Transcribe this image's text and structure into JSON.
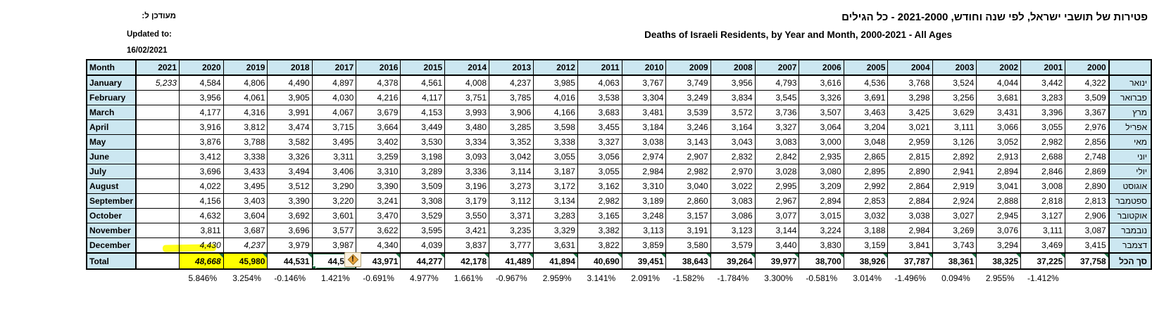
{
  "titles": {
    "hebrew": "פטירות של תושבי ישראל, לפי שנה וחודש, 2021-2000 - כל הגילים",
    "english": "Deaths of Israeli Residents, by Year and Month, 2000-2021 - All Ages"
  },
  "updated": {
    "hebrew_label": "מעודכן ל:",
    "english_label": "Updated to:",
    "date": "16/02/2021"
  },
  "table": {
    "month_header": "Month",
    "years": [
      "2021",
      "2020",
      "2019",
      "2018",
      "2017",
      "2016",
      "2015",
      "2014",
      "2013",
      "2012",
      "2011",
      "2010",
      "2009",
      "2008",
      "2007",
      "2006",
      "2005",
      "2004",
      "2003",
      "2002",
      "2001",
      "2000"
    ],
    "rows": [
      {
        "month": "January",
        "hebrew": "ינואר",
        "values": [
          "5,233",
          "4,584",
          "4,806",
          "4,490",
          "4,897",
          "4,378",
          "4,561",
          "4,008",
          "4,237",
          "3,985",
          "4,063",
          "3,767",
          "3,749",
          "3,956",
          "4,793",
          "3,616",
          "4,536",
          "3,768",
          "3,524",
          "4,044",
          "3,442",
          "4,322"
        ]
      },
      {
        "month": "February",
        "hebrew": "פברואר",
        "values": [
          "",
          "3,956",
          "4,061",
          "3,905",
          "4,030",
          "4,216",
          "4,117",
          "3,751",
          "3,785",
          "4,016",
          "3,538",
          "3,304",
          "3,249",
          "3,834",
          "3,545",
          "3,326",
          "3,691",
          "3,298",
          "3,256",
          "3,681",
          "3,283",
          "3,509"
        ]
      },
      {
        "month": "March",
        "hebrew": "מרץ",
        "values": [
          "",
          "4,177",
          "4,316",
          "3,991",
          "4,067",
          "3,679",
          "4,153",
          "3,993",
          "3,906",
          "4,166",
          "3,683",
          "3,481",
          "3,539",
          "3,572",
          "3,736",
          "3,507",
          "3,463",
          "3,425",
          "3,629",
          "3,431",
          "3,396",
          "3,367"
        ]
      },
      {
        "month": "April",
        "hebrew": "אפריל",
        "values": [
          "",
          "3,916",
          "3,812",
          "3,474",
          "3,715",
          "3,664",
          "3,449",
          "3,480",
          "3,285",
          "3,598",
          "3,455",
          "3,184",
          "3,246",
          "3,164",
          "3,327",
          "3,064",
          "3,204",
          "3,021",
          "3,111",
          "3,066",
          "3,055",
          "2,976"
        ]
      },
      {
        "month": "May",
        "hebrew": "מאי",
        "values": [
          "",
          "3,876",
          "3,788",
          "3,582",
          "3,495",
          "3,402",
          "3,530",
          "3,334",
          "3,352",
          "3,338",
          "3,327",
          "3,038",
          "3,143",
          "3,043",
          "3,083",
          "3,000",
          "3,048",
          "2,959",
          "3,126",
          "3,052",
          "2,982",
          "2,856"
        ]
      },
      {
        "month": "June",
        "hebrew": "יוני",
        "values": [
          "",
          "3,412",
          "3,338",
          "3,326",
          "3,311",
          "3,259",
          "3,198",
          "3,093",
          "3,042",
          "3,055",
          "3,056",
          "2,974",
          "2,907",
          "2,832",
          "2,842",
          "2,935",
          "2,865",
          "2,815",
          "2,892",
          "2,913",
          "2,688",
          "2,748"
        ]
      },
      {
        "month": "July",
        "hebrew": "יולי",
        "values": [
          "",
          "3,696",
          "3,433",
          "3,494",
          "3,406",
          "3,310",
          "3,289",
          "3,336",
          "3,114",
          "3,187",
          "3,055",
          "2,984",
          "2,982",
          "2,970",
          "3,028",
          "3,080",
          "2,895",
          "2,890",
          "2,941",
          "2,894",
          "2,846",
          "2,869"
        ]
      },
      {
        "month": "August",
        "hebrew": "אוגוסט",
        "values": [
          "",
          "4,022",
          "3,495",
          "3,512",
          "3,290",
          "3,390",
          "3,509",
          "3,196",
          "3,273",
          "3,172",
          "3,162",
          "3,310",
          "3,040",
          "3,022",
          "2,995",
          "3,209",
          "2,992",
          "2,864",
          "2,919",
          "3,041",
          "3,008",
          "2,890"
        ]
      },
      {
        "month": "September",
        "hebrew": "ספטמבר",
        "values": [
          "",
          "4,156",
          "3,403",
          "3,390",
          "3,220",
          "3,241",
          "3,308",
          "3,179",
          "3,112",
          "3,134",
          "2,982",
          "3,189",
          "2,860",
          "3,083",
          "2,967",
          "2,894",
          "2,853",
          "2,884",
          "2,924",
          "2,888",
          "2,818",
          "2,813"
        ]
      },
      {
        "month": "October",
        "hebrew": "אוקטובר",
        "values": [
          "",
          "4,632",
          "3,604",
          "3,692",
          "3,601",
          "3,470",
          "3,529",
          "3,550",
          "3,371",
          "3,283",
          "3,165",
          "3,248",
          "3,157",
          "3,086",
          "3,077",
          "3,015",
          "3,032",
          "3,038",
          "3,027",
          "2,945",
          "3,127",
          "2,906"
        ]
      },
      {
        "month": "November",
        "hebrew": "נובמבר",
        "values": [
          "",
          "3,811",
          "3,687",
          "3,696",
          "3,577",
          "3,622",
          "3,595",
          "3,421",
          "3,235",
          "3,329",
          "3,382",
          "3,113",
          "3,191",
          "3,123",
          "3,144",
          "3,224",
          "3,188",
          "2,984",
          "3,269",
          "3,076",
          "3,111",
          "3,087"
        ]
      },
      {
        "month": "December",
        "hebrew": "דצמבר",
        "values": [
          "",
          "4,430",
          "4,237",
          "3,979",
          "3,987",
          "4,340",
          "4,039",
          "3,837",
          "3,777",
          "3,631",
          "3,822",
          "3,859",
          "3,580",
          "3,579",
          "3,440",
          "3,830",
          "3,159",
          "3,841",
          "3,743",
          "3,294",
          "3,469",
          "3,415"
        ]
      }
    ],
    "total": {
      "label": "Total",
      "hebrew": "סך הכל",
      "values": [
        "",
        "48,668",
        "45,980",
        "44,531",
        "44,596",
        "43,971",
        "44,277",
        "42,178",
        "41,489",
        "41,894",
        "40,690",
        "39,451",
        "38,643",
        "39,264",
        "39,977",
        "38,700",
        "38,926",
        "37,787",
        "38,361",
        "38,325",
        "37,225",
        "37,758"
      ]
    },
    "pct_change": [
      "",
      "5.846%",
      "3.254%",
      "-0.146%",
      "1.421%",
      "-0.691%",
      "4.977%",
      "1.661%",
      "-0.967%",
      "2.959%",
      "3.141%",
      "2.091%",
      "-1.582%",
      "-1.784%",
      "3.300%",
      "-0.581%",
      "3.014%",
      "-1.496%",
      "0.094%",
      "2.955%",
      "-1.412%",
      ""
    ]
  },
  "annotations": {
    "italic_cells": [
      {
        "row": "January",
        "year": "2021"
      },
      {
        "row": "December",
        "year": "2020"
      },
      {
        "row": "December",
        "year": "2019"
      }
    ],
    "total_italic_years": [
      "2020"
    ],
    "highlighted_total_years": [
      "2020",
      "2019"
    ],
    "highlighted_pct_years": [
      "2020",
      "2019"
    ],
    "selected_cell": {
      "row": "Total",
      "year": "2017",
      "value": "44,596"
    },
    "error_triangle_total_years": [
      "2020",
      "2019",
      "2018",
      "2017",
      "2016",
      "2015",
      "2014",
      "2013",
      "2012",
      "2011",
      "2010",
      "2009",
      "2008",
      "2007",
      "2006",
      "2005",
      "2004",
      "2003",
      "2002",
      "2001",
      "2000"
    ],
    "warning_button": "trace-error"
  },
  "colors": {
    "header_fill": "#CCE7F1",
    "highlight": "#FFFF00",
    "selection_green": "#1E7145",
    "error_triangle_green": "#1E7145",
    "warning_diamond": "#E8A33D",
    "border": "#000000"
  }
}
